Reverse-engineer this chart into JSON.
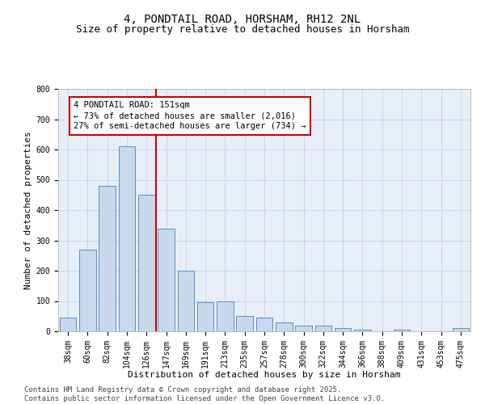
{
  "title1": "4, PONDTAIL ROAD, HORSHAM, RH12 2NL",
  "title2": "Size of property relative to detached houses in Horsham",
  "xlabel": "Distribution of detached houses by size in Horsham",
  "ylabel": "Number of detached properties",
  "categories": [
    "38sqm",
    "60sqm",
    "82sqm",
    "104sqm",
    "126sqm",
    "147sqm",
    "169sqm",
    "191sqm",
    "213sqm",
    "235sqm",
    "257sqm",
    "278sqm",
    "300sqm",
    "322sqm",
    "344sqm",
    "366sqm",
    "388sqm",
    "409sqm",
    "431sqm",
    "453sqm",
    "475sqm"
  ],
  "values": [
    45,
    270,
    480,
    610,
    450,
    340,
    200,
    95,
    100,
    50,
    45,
    30,
    20,
    20,
    10,
    5,
    0,
    5,
    0,
    0,
    10
  ],
  "bar_color": "#c8d8ed",
  "bar_edge_color": "#5b8ec4",
  "vline_color": "#cc0000",
  "vline_x_idx": 5,
  "annotation_text": "4 PONDTAIL ROAD: 151sqm\n← 73% of detached houses are smaller (2,016)\n27% of semi-detached houses are larger (734) →",
  "annotation_box_color": "#ffffff",
  "annotation_box_edge": "#cc0000",
  "ylim": [
    0,
    800
  ],
  "yticks": [
    0,
    100,
    200,
    300,
    400,
    500,
    600,
    700,
    800
  ],
  "grid_color": "#c8d4e8",
  "background_color": "#e8eef8",
  "footer_text": "Contains HM Land Registry data © Crown copyright and database right 2025.\nContains public sector information licensed under the Open Government Licence v3.0.",
  "title_fontsize": 10,
  "subtitle_fontsize": 9,
  "axis_label_fontsize": 8,
  "tick_fontsize": 7,
  "annotation_fontsize": 7.5,
  "footer_fontsize": 6.5
}
